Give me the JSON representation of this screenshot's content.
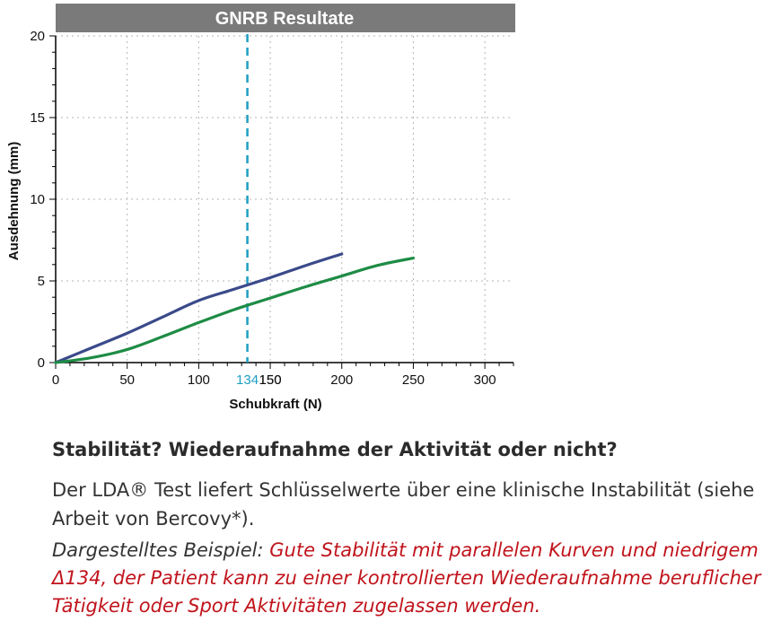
{
  "chart_data": {
    "type": "line",
    "title": "GNRB Resultate",
    "xlabel": "Schubkraft (N)",
    "ylabel": "Ausdehnung (mm)",
    "xlim": [
      0,
      320
    ],
    "ylim": [
      0,
      20
    ],
    "x_ticks": [
      0,
      50,
      100,
      150,
      200,
      250,
      300
    ],
    "y_ticks": [
      0,
      5,
      10,
      15,
      20
    ],
    "grid": true,
    "legend": "none",
    "series": [
      {
        "color": "#3a4a8a",
        "points": [
          [
            0,
            0
          ],
          [
            25,
            0.9
          ],
          [
            50,
            1.8
          ],
          [
            75,
            2.8
          ],
          [
            100,
            3.8
          ],
          [
            125,
            4.5
          ],
          [
            150,
            5.2
          ],
          [
            175,
            5.95
          ],
          [
            200,
            6.65
          ]
        ]
      },
      {
        "color": "#1e8c45",
        "points": [
          [
            0,
            0
          ],
          [
            25,
            0.3
          ],
          [
            50,
            0.8
          ],
          [
            75,
            1.6
          ],
          [
            100,
            2.45
          ],
          [
            125,
            3.25
          ],
          [
            150,
            3.95
          ],
          [
            175,
            4.65
          ],
          [
            200,
            5.3
          ],
          [
            225,
            5.95
          ],
          [
            250,
            6.4
          ]
        ]
      }
    ],
    "marker_line": {
      "x": 134,
      "label": "134",
      "color": "#1d9ec4"
    }
  },
  "colors": {
    "title_bar": "#7a7a7a",
    "accent_red": "#c0141c"
  },
  "text": {
    "heading": "Stabilität? Wiederaufnahme der Aktivität oder nicht?",
    "body": "Der LDA® Test liefert Schlüsselwerte über eine klinische Instabilität (siehe Arbeit von Bercovy*).",
    "example_lead": "Dargestelltes Beispiel:",
    "example_red": "Gute Stabilität mit parallelen Kurven und niedrigem Δ134, der Patient kann zu einer kontrollierten Wiederaufnahme beruflicher Tätigkeit oder Sport Aktivitäten zugelassen werden."
  }
}
